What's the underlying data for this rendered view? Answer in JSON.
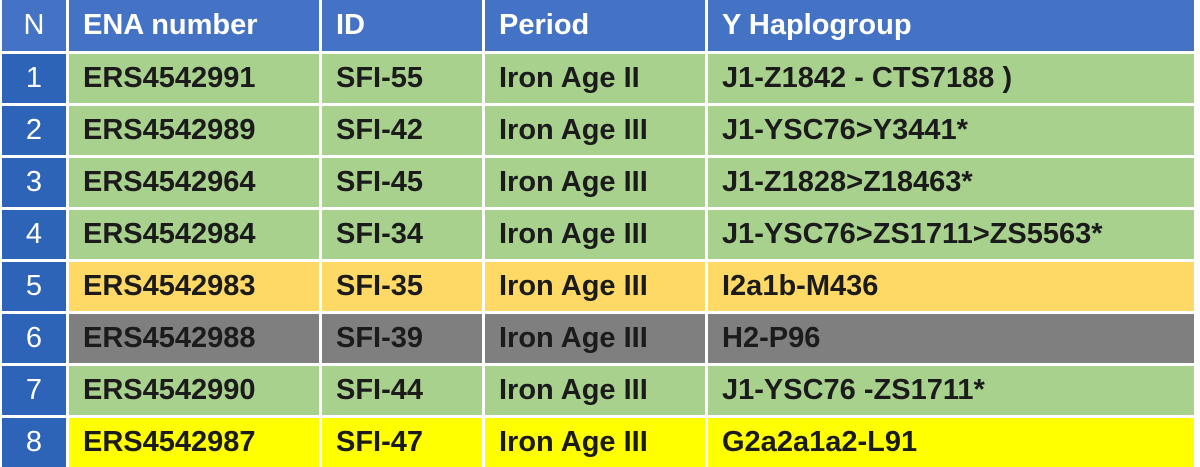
{
  "table": {
    "header": [
      "N",
      "ENA number",
      "ID",
      "Period",
      "Y Haplogroup"
    ],
    "rows": [
      [
        "1",
        "ERS4542991",
        "SFI-55",
        "Iron Age II",
        "J1-Z1842 - CTS7188 )"
      ],
      [
        "2",
        "ERS4542989",
        "SFI-42",
        "Iron Age III",
        "J1-YSC76>Y3441*"
      ],
      [
        "3",
        "ERS4542964",
        "SFI-45",
        "Iron Age III",
        "J1-Z1828>Z18463*"
      ],
      [
        "4",
        "ERS4542984",
        "SFI-34",
        "Iron Age III",
        "J1-YSC76>ZS1711>ZS5563*"
      ],
      [
        "5",
        "ERS4542983",
        "SFI-35",
        "Iron Age III",
        "I2a1b-M436"
      ],
      [
        "6",
        "ERS4542988",
        "SFI-39",
        "Iron Age III",
        "H2-P96"
      ],
      [
        "7",
        "ERS4542990",
        "SFI-44",
        "Iron Age III",
        "J1-YSC76 -ZS1711*"
      ],
      [
        "8",
        "ERS4542987",
        "SFI-47",
        "Iron Age III",
        "G2a2a1a2-L91"
      ]
    ],
    "row_colors": [
      "#a9d18e",
      "#a9d18e",
      "#a9d18e",
      "#a9d18e",
      "#ffd966",
      "#7f7f7f",
      "#a9d18e",
      "#ffff00"
    ]
  }
}
